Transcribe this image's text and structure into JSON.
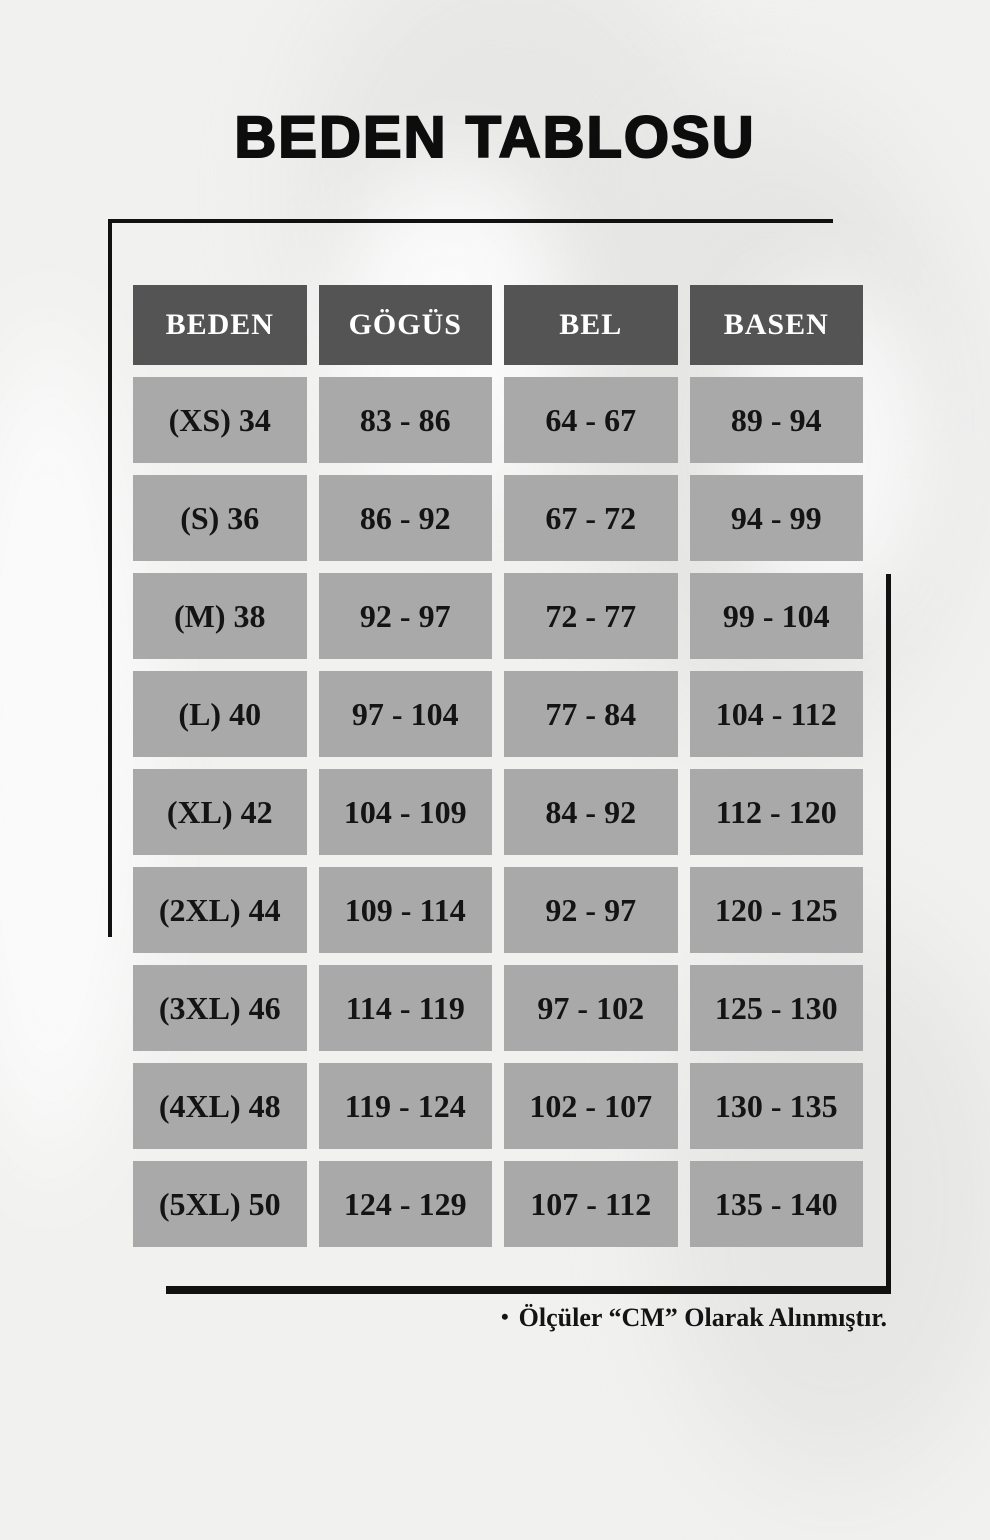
{
  "page": {
    "title": "BEDEN TABLOSU",
    "footer_bullet": "•",
    "footer_note": "Ölçüler “CM” Olarak Alınmıştır."
  },
  "chart_data": {
    "type": "table",
    "title": "BEDEN TABLOSU",
    "columns": [
      "BEDEN",
      "GÖGÜS",
      "BEL",
      "BASEN"
    ],
    "rows": [
      [
        "(XS) 34",
        "83 - 86",
        "64 - 67",
        "89 - 94"
      ],
      [
        "(S) 36",
        "86 - 92",
        "67 - 72",
        "94 - 99"
      ],
      [
        "(M) 38",
        "92 - 97",
        "72 - 77",
        "99 - 104"
      ],
      [
        "(L) 40",
        "97 - 104",
        "77 - 84",
        "104 - 112"
      ],
      [
        "(XL) 42",
        "104 - 109",
        "84 - 92",
        "112 - 120"
      ],
      [
        "(2XL) 44",
        "109 - 114",
        "92 - 97",
        "120 - 125"
      ],
      [
        "(3XL) 46",
        "114 - 119",
        "97 - 102",
        "125 - 130"
      ],
      [
        "(4XL) 48",
        "119 - 124",
        "102 - 107",
        "130 - 135"
      ],
      [
        "(5XL) 50",
        "124 - 129",
        "107 - 112",
        "135 - 140"
      ]
    ],
    "unit_note": "Ölçüler “CM” Olarak Alınmıştır.",
    "grid": false,
    "legend_position": "none"
  },
  "colors": {
    "header_bg": "#545454",
    "header_text": "#ffffff",
    "cell_bg": "#a9a9a9",
    "cell_text": "#141414",
    "line": "#111111",
    "background": "#f1f1f0",
    "title_text": "#0d0d0d"
  }
}
